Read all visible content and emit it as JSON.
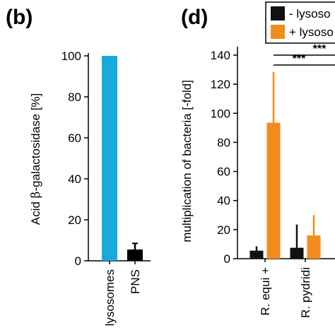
{
  "chart_data": [
    {
      "panel_label": "(b)",
      "type": "bar",
      "categories": [
        "lysosomes",
        "PNS"
      ],
      "values": [
        100,
        5.5
      ],
      "errors": [
        0,
        3
      ],
      "colors": [
        "#1aa9dc",
        "#000000"
      ],
      "ylabel_pre": "Acid ",
      "ylabel_greek": "β",
      "ylabel_post": "-galactosidase [%]",
      "ylim": [
        0,
        100
      ],
      "yticks": [
        0,
        20,
        40,
        60,
        80,
        100
      ]
    },
    {
      "panel_label": "(d)",
      "type": "bar",
      "categories": [
        "R. equi +",
        "R. pydridi"
      ],
      "ylabel": "multiplication of bacteria [-fold]",
      "ylim": [
        0,
        140
      ],
      "yticks": [
        0,
        20,
        40,
        60,
        80,
        100,
        120,
        140
      ],
      "series": [
        {
          "name": "- lysoso",
          "color": "#111111",
          "values": [
            5.5,
            7.5
          ],
          "errors": [
            3,
            16
          ]
        },
        {
          "name": "+ lysoso",
          "color": "#f28c1e",
          "values": [
            93.5,
            16
          ],
          "errors": [
            35,
            14
          ]
        }
      ],
      "legend_position": "top-right",
      "significance": [
        {
          "label": "***",
          "from": 0,
          "to": 1.3
        },
        {
          "label": "***",
          "from": 0,
          "to": 1.0
        }
      ]
    }
  ]
}
